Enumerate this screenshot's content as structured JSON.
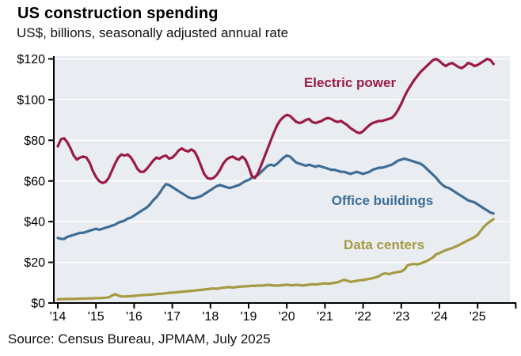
{
  "header": {
    "title": "US construction spending",
    "subtitle": "US$, billions, seasonally adjusted annual rate"
  },
  "footer": {
    "source": "Source: Census Bureau, JPMAM, July 2025"
  },
  "colors": {
    "plot_bg": "#E9EDF2",
    "grid": "#FFFFFF",
    "axis": "#000000",
    "electric_power": "#9B1B43",
    "office_buildings": "#3D6D96",
    "data_centers": "#A59A41"
  },
  "chart_data": {
    "type": "line",
    "title": "US construction spending",
    "subtitle": "US$, billions, seasonally adjusted annual rate",
    "source": "Source: Census Bureau, JPMAM, July 2025",
    "x_unit": "monthly",
    "x_start": "2014-01",
    "x_end": "2025-06",
    "xtick_labels": [
      "'14",
      "'15",
      "'16",
      "'17",
      "'18",
      "'19",
      "'20",
      "'21",
      "'22",
      "'23",
      "'24",
      "'25"
    ],
    "ylim": [
      0,
      120
    ],
    "ytick_step": 20,
    "ytick_prefix": "$",
    "grid": true,
    "legend": "inline-labels",
    "series": [
      {
        "name": "Electric power",
        "color": "#9B1B43",
        "label_xy": [
          442,
          104
        ],
        "values": [
          77,
          80.5,
          81,
          79,
          76,
          72.5,
          70.5,
          71.5,
          72,
          71.5,
          69,
          65,
          62,
          60,
          59,
          59.5,
          61.5,
          65,
          68.5,
          71.5,
          73,
          72.5,
          73,
          71.5,
          69,
          66,
          64.5,
          64.5,
          66,
          68,
          70,
          71.5,
          71,
          72,
          72.5,
          71,
          71.5,
          73,
          75,
          76,
          75,
          74.5,
          75.5,
          74.5,
          71.5,
          67.5,
          63.5,
          61.5,
          61,
          61.5,
          63,
          65.5,
          68.5,
          70.5,
          71.5,
          72,
          71,
          70.5,
          72,
          70.5,
          67,
          62.5,
          61.5,
          64,
          68,
          72,
          76,
          80,
          84,
          87.5,
          90,
          91.5,
          92.5,
          92,
          90.5,
          89,
          88.5,
          89,
          90,
          90.5,
          89,
          88.5,
          89,
          89.5,
          90.5,
          91,
          90.5,
          89.5,
          89,
          89.5,
          88.5,
          87.5,
          86,
          85,
          84,
          83.5,
          84.5,
          86,
          87.5,
          88.5,
          89,
          89.5,
          89.5,
          90,
          90.5,
          91,
          92.5,
          95,
          98,
          101.5,
          104.5,
          107,
          109.5,
          111.5,
          113.5,
          115,
          116.5,
          118,
          119.5,
          120,
          119,
          117.5,
          116.5,
          117.5,
          118,
          117,
          116,
          115.5,
          116.5,
          118,
          117.5,
          116.5,
          117,
          118,
          119,
          120,
          119.5,
          117.5
        ]
      },
      {
        "name": "Office buildings",
        "color": "#3D6D96",
        "label_xy": [
          483,
          253
        ],
        "values": [
          32,
          31.5,
          31.5,
          32.5,
          33,
          33.5,
          34,
          34.5,
          34.5,
          35,
          35.5,
          36,
          36.5,
          36,
          36.5,
          37,
          37.5,
          38,
          38.5,
          39.5,
          40,
          40.5,
          41.5,
          42,
          43,
          44,
          45,
          46,
          47,
          48.5,
          50.5,
          52,
          54,
          56.5,
          58.5,
          58,
          57,
          56,
          55,
          54,
          53,
          52,
          51.5,
          51.5,
          52,
          52.5,
          53.5,
          54.5,
          55.5,
          56.5,
          57.5,
          58,
          57.5,
          57,
          56.5,
          57,
          57.5,
          58,
          59,
          60,
          60.5,
          61.5,
          62,
          63,
          64.5,
          66,
          67.5,
          68,
          67.5,
          68.5,
          70,
          71.5,
          72.5,
          72,
          70.5,
          69,
          68.5,
          68,
          67.5,
          68,
          67.5,
          67,
          67.5,
          67,
          66.5,
          66,
          65.5,
          65.5,
          65,
          64.5,
          64.5,
          64,
          63.5,
          64,
          64.5,
          64,
          63.5,
          64,
          64.5,
          65.5,
          66,
          66.5,
          66.5,
          67,
          67.5,
          68,
          69,
          70,
          70.5,
          71,
          70.5,
          70,
          69.5,
          69,
          68.5,
          67.5,
          66,
          64.5,
          63,
          61.5,
          59.5,
          58,
          57,
          56.5,
          55.5,
          54.5,
          53.5,
          52.5,
          51.5,
          50.5,
          50,
          49.5,
          48.5,
          47.5,
          46.5,
          45.5,
          44.5,
          44
        ]
      },
      {
        "name": "Data centers",
        "color": "#A59A41",
        "label_xy": [
          485,
          309
        ],
        "values": [
          1.8,
          1.9,
          1.9,
          2,
          2,
          2,
          2.1,
          2.1,
          2.2,
          2.2,
          2.3,
          2.3,
          2.4,
          2.4,
          2.5,
          2.6,
          2.8,
          3.6,
          4.3,
          3.7,
          3.2,
          3.2,
          3.3,
          3.4,
          3.5,
          3.6,
          3.8,
          3.9,
          4,
          4.1,
          4.2,
          4.4,
          4.5,
          4.6,
          4.8,
          5,
          5.1,
          5.2,
          5.4,
          5.5,
          5.7,
          5.8,
          6,
          6.1,
          6.3,
          6.4,
          6.6,
          6.8,
          7,
          7.1,
          7,
          7.3,
          7.5,
          7.7,
          7.8,
          7.6,
          7.8,
          8,
          8.1,
          8.2,
          8.3,
          8.5,
          8.4,
          8.6,
          8.5,
          8.7,
          8.9,
          8.8,
          8.6,
          8.5,
          8.7,
          8.8,
          9,
          8.8,
          8.7,
          8.9,
          8.8,
          8.6,
          8.8,
          9,
          9.2,
          9.1,
          9.3,
          9.5,
          9.6,
          9.5,
          9.7,
          9.9,
          10.2,
          10.8,
          11.4,
          11,
          10.4,
          10.6,
          10.9,
          11.2,
          11.3,
          11.6,
          11.9,
          12.2,
          12.6,
          13.2,
          14.2,
          14.6,
          14.2,
          14.6,
          15,
          15.3,
          15.5,
          16.5,
          18.5,
          19,
          19.2,
          19,
          19.4,
          20,
          20.6,
          21.5,
          22.5,
          24,
          24.5,
          25.3,
          26,
          26.5,
          27,
          27.7,
          28.4,
          29.2,
          30,
          30.8,
          31.6,
          32.4,
          33.5,
          35.5,
          37.5,
          39,
          40.2,
          41.2
        ]
      }
    ]
  }
}
